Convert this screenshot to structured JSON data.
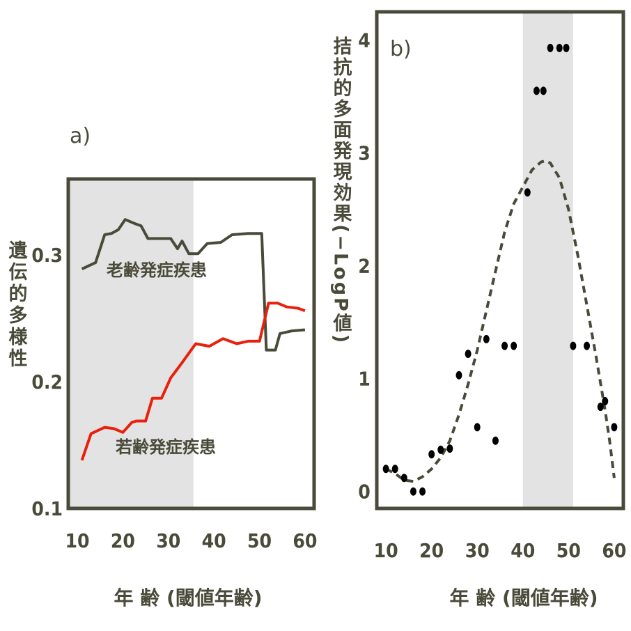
{
  "chart_data": [
    {
      "panel_label": "a)",
      "type": "line",
      "ylabel": "遺伝的多様性",
      "xlabel": "年 齢 (閾値年齢)",
      "xlim": [
        8,
        62
      ],
      "ylim": [
        0.1,
        0.36
      ],
      "xticks": [
        "10",
        "20",
        "30",
        "40",
        "50",
        "60"
      ],
      "yticks": [
        "0.1",
        "0.2",
        "0.3"
      ],
      "shaded_x_range": [
        8,
        35.5
      ],
      "series": [
        {
          "name": "老齢発症疾患",
          "color": "#4a4a3a",
          "points": [
            [
              11,
              0.289
            ],
            [
              14,
              0.294
            ],
            [
              16,
              0.316
            ],
            [
              17.5,
              0.317
            ],
            [
              19,
              0.32
            ],
            [
              20.5,
              0.328
            ],
            [
              22.5,
              0.325
            ],
            [
              24,
              0.323
            ],
            [
              25.5,
              0.313
            ],
            [
              27,
              0.313
            ],
            [
              28.5,
              0.313
            ],
            [
              30.5,
              0.313
            ],
            [
              32,
              0.305
            ],
            [
              33,
              0.311
            ],
            [
              34.5,
              0.301
            ],
            [
              36.5,
              0.301
            ],
            [
              38.5,
              0.309
            ],
            [
              41.5,
              0.31
            ],
            [
              44,
              0.316
            ],
            [
              47.5,
              0.317
            ],
            [
              50.5,
              0.317
            ],
            [
              51.5,
              0.225
            ],
            [
              53.5,
              0.225
            ],
            [
              54.5,
              0.238
            ],
            [
              57,
              0.24
            ],
            [
              60,
              0.241
            ]
          ]
        },
        {
          "name": "若齢発症疾患",
          "color": "#e8200c",
          "points": [
            [
              11,
              0.138
            ],
            [
              13,
              0.159
            ],
            [
              16,
              0.164
            ],
            [
              18,
              0.163
            ],
            [
              20,
              0.16
            ],
            [
              22,
              0.168
            ],
            [
              23,
              0.169
            ],
            [
              25,
              0.169
            ],
            [
              26.5,
              0.187
            ],
            [
              28.5,
              0.187
            ],
            [
              30.5,
              0.203
            ],
            [
              33,
              0.215
            ],
            [
              36,
              0.23
            ],
            [
              39,
              0.228
            ],
            [
              42,
              0.234
            ],
            [
              45,
              0.23
            ],
            [
              47.5,
              0.232
            ],
            [
              50,
              0.232
            ],
            [
              52,
              0.262
            ],
            [
              54,
              0.262
            ],
            [
              56,
              0.259
            ],
            [
              58.5,
              0.258
            ],
            [
              60,
              0.256
            ]
          ]
        }
      ]
    },
    {
      "panel_label": "b)",
      "type": "scatter",
      "ylabel": "拮抗的多面発現効果(−LogP値)",
      "xlabel": "年 齢 (閾値年齢)",
      "xlim": [
        8,
        62
      ],
      "ylim": [
        -0.15,
        4.25
      ],
      "xticks": [
        "10",
        "20",
        "30",
        "40",
        "50",
        "60"
      ],
      "yticks": [
        "0",
        "1",
        "2",
        "3",
        "4"
      ],
      "shaded_x_range": [
        40,
        51
      ],
      "points": [
        [
          10,
          0.2
        ],
        [
          12,
          0.2
        ],
        [
          14,
          0.12
        ],
        [
          16,
          0.0
        ],
        [
          18,
          0.0
        ],
        [
          20,
          0.33
        ],
        [
          22,
          0.37
        ],
        [
          24,
          0.38
        ],
        [
          26,
          1.03
        ],
        [
          28,
          1.22
        ],
        [
          30,
          0.57
        ],
        [
          32,
          1.35
        ],
        [
          34,
          0.45
        ],
        [
          36,
          1.29
        ],
        [
          38,
          1.29
        ],
        [
          41,
          2.65
        ],
        [
          43,
          3.55
        ],
        [
          44.5,
          3.55
        ],
        [
          46,
          3.93
        ],
        [
          48,
          3.93
        ],
        [
          49.5,
          3.93
        ],
        [
          51,
          1.29
        ],
        [
          54,
          1.29
        ],
        [
          57,
          0.75
        ],
        [
          58,
          0.8
        ],
        [
          60,
          0.57
        ]
      ],
      "trend": {
        "style": "dashed",
        "points": [
          [
            10,
            0.2
          ],
          [
            12,
            0.16
          ],
          [
            14,
            0.1
          ],
          [
            16,
            0.09
          ],
          [
            18,
            0.13
          ],
          [
            20,
            0.2
          ],
          [
            22,
            0.3
          ],
          [
            24,
            0.45
          ],
          [
            26,
            0.68
          ],
          [
            28,
            0.95
          ],
          [
            30,
            1.25
          ],
          [
            32,
            1.6
          ],
          [
            34,
            1.95
          ],
          [
            36,
            2.3
          ],
          [
            38,
            2.55
          ],
          [
            40,
            2.7
          ],
          [
            42,
            2.85
          ],
          [
            44,
            2.92
          ],
          [
            45,
            2.93
          ],
          [
            46,
            2.91
          ],
          [
            48,
            2.78
          ],
          [
            50,
            2.5
          ],
          [
            52,
            2.1
          ],
          [
            54,
            1.65
          ],
          [
            56,
            1.2
          ],
          [
            58,
            0.72
          ],
          [
            59,
            0.45
          ],
          [
            60,
            0.12
          ]
        ]
      }
    }
  ]
}
